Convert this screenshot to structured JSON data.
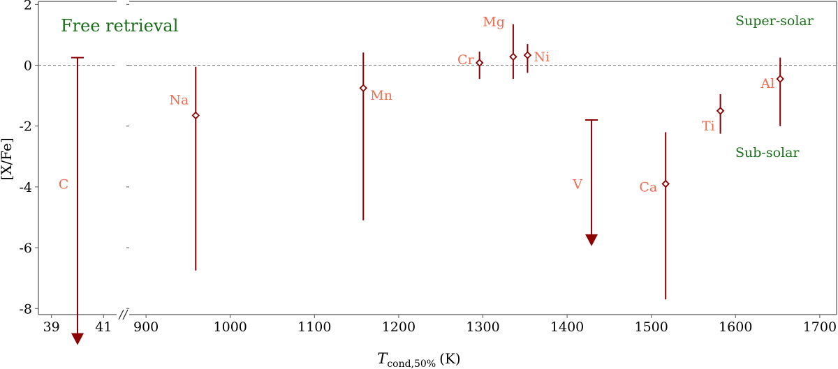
{
  "chart_data": {
    "type": "scatter",
    "title": "",
    "xlabel": "T_cond,50% (K)",
    "xlabel_main": "T",
    "xlabel_sub": "cond,50%",
    "xlabel_unit": "(K)",
    "ylabel": "[X/Fe]",
    "ylim": [
      -8.2,
      2.1
    ],
    "yticks": [
      2,
      0,
      -2,
      -4,
      -6,
      -8
    ],
    "ytick_labels": [
      "2",
      "0",
      "-2",
      "-4",
      "-6",
      "-8"
    ],
    "broken_x_axis": true,
    "left_panel": {
      "xlim": [
        38.5,
        41.5
      ],
      "xticks": [
        39,
        41
      ]
    },
    "right_panel": {
      "xlim": [
        880,
        1720
      ],
      "xticks": [
        900,
        1000,
        1100,
        1200,
        1300,
        1400,
        1500,
        1600,
        1700
      ]
    },
    "reference_line_y": 0,
    "grid": false,
    "colors": {
      "points": "#8b0000",
      "labels": "#f26d50",
      "annotations": "#1a6e1a",
      "refline": "#777777"
    },
    "annotations": {
      "method": "Free retrieval",
      "upper": "Super-solar",
      "lower": "Sub-solar"
    },
    "points": [
      {
        "element": "C",
        "panel": "left",
        "x": 40.0,
        "y": null,
        "upper_limit": 0.25,
        "arrow_to": -9.2
      },
      {
        "element": "Na",
        "panel": "right",
        "x": 959,
        "y": -1.65,
        "err_low": -6.75,
        "err_high": -0.05
      },
      {
        "element": "Mn",
        "panel": "right",
        "x": 1158,
        "y": -0.75,
        "err_low": -5.1,
        "err_high": 0.42
      },
      {
        "element": "Cr",
        "panel": "right",
        "x": 1296,
        "y": 0.08,
        "err_low": -0.45,
        "err_high": 0.45
      },
      {
        "element": "Mg",
        "panel": "right",
        "x": 1336,
        "y": 0.28,
        "err_low": -0.45,
        "err_high": 1.35
      },
      {
        "element": "Ni",
        "panel": "right",
        "x": 1353,
        "y": 0.33,
        "err_low": -0.25,
        "err_high": 0.7
      },
      {
        "element": "V",
        "panel": "right",
        "x": 1429,
        "y": null,
        "upper_limit": -1.8,
        "arrow_to": -5.95
      },
      {
        "element": "Ca",
        "panel": "right",
        "x": 1517,
        "y": -3.9,
        "err_low": -7.7,
        "err_high": -2.2
      },
      {
        "element": "Ti",
        "panel": "right",
        "x": 1582,
        "y": -1.5,
        "err_low": -2.25,
        "err_high": -0.95
      },
      {
        "element": "Al",
        "panel": "right",
        "x": 1653,
        "y": -0.45,
        "err_low": -2.0,
        "err_high": 0.25
      }
    ]
  }
}
